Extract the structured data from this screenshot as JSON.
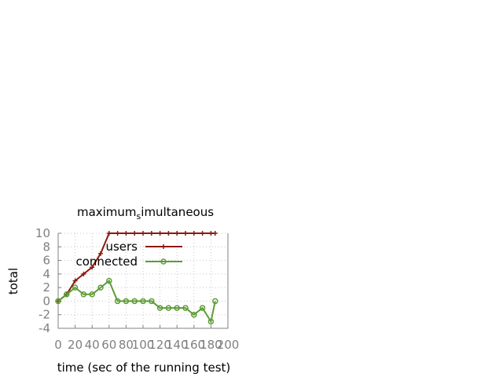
{
  "chart_data": {
    "type": "line",
    "title": "maximum",
    "title_subscript": "s",
    "title_rest": "imultaneous",
    "xlabel": "time (sec of the running test)",
    "ylabel": "total",
    "xlim": [
      0,
      200
    ],
    "ylim": [
      -4,
      10
    ],
    "xticks": [
      0,
      20,
      40,
      60,
      80,
      100,
      120,
      140,
      160,
      180,
      200
    ],
    "yticks": [
      -4,
      -2,
      0,
      2,
      4,
      6,
      8,
      10
    ],
    "xtick_labels": [
      "0",
      "20",
      "40",
      "60",
      "80",
      "100",
      "120",
      "140",
      "160",
      "180",
      "200"
    ],
    "ytick_labels": [
      "-4",
      "-2",
      "0",
      "2",
      "4",
      "6",
      "8",
      "10"
    ],
    "grid": true,
    "legend_position": "top-right",
    "series": [
      {
        "name": "users",
        "color": "#8b1a0e",
        "marker": "plus",
        "x": [
          0,
          10,
          20,
          30,
          40,
          50,
          60,
          70,
          80,
          90,
          100,
          110,
          120,
          130,
          140,
          150,
          160,
          170,
          180,
          185
        ],
        "y": [
          0,
          1,
          3,
          4,
          5,
          7,
          10,
          10,
          10,
          10,
          10,
          10,
          10,
          10,
          10,
          10,
          10,
          10,
          10,
          10
        ]
      },
      {
        "name": "connected",
        "color": "#5e9c36",
        "marker": "circle",
        "x": [
          0,
          10,
          20,
          30,
          40,
          50,
          60,
          70,
          80,
          90,
          100,
          110,
          120,
          130,
          140,
          150,
          160,
          170,
          180,
          185
        ],
        "y": [
          0,
          1,
          2,
          1,
          1,
          2,
          3,
          0,
          0,
          0,
          0,
          0,
          -1,
          -1,
          -1,
          -1,
          -2,
          -1,
          -3,
          0
        ]
      }
    ]
  }
}
